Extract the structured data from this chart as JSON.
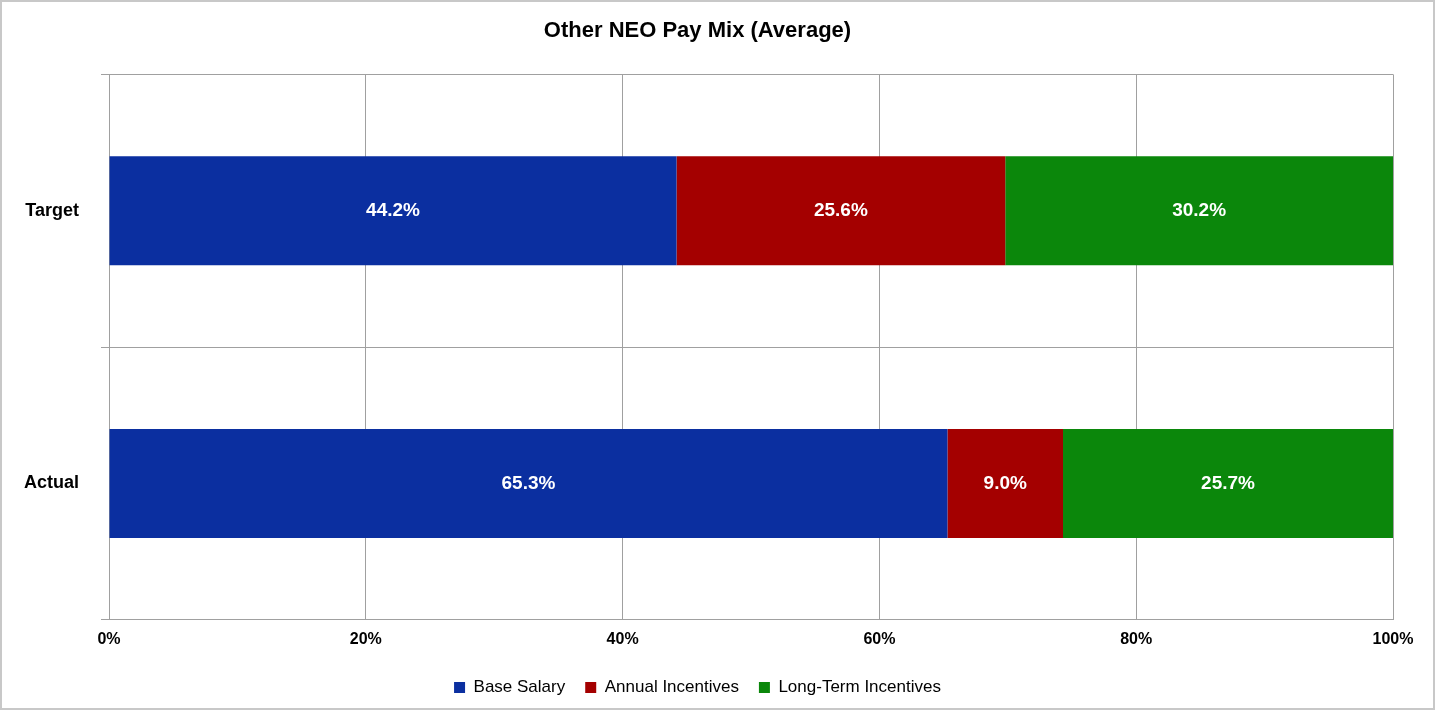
{
  "chart_data": {
    "type": "bar",
    "title": "Other NEO Pay Mix (Average)",
    "orientation": "horizontal",
    "stacked": true,
    "categories": [
      "Target",
      "Actual"
    ],
    "series": [
      {
        "name": "Base Salary",
        "color": "#0b2fa0",
        "values": [
          44.2,
          65.3
        ],
        "value_labels": [
          "44.2%",
          "65.3%"
        ]
      },
      {
        "name": "Annual Incentives",
        "color": "#a40000",
        "values": [
          25.6,
          9.0
        ],
        "value_labels": [
          "25.6%",
          "9.0%"
        ]
      },
      {
        "name": "Long-Term Incentives",
        "color": "#0b870b",
        "values": [
          30.2,
          25.7
        ],
        "value_labels": [
          "30.2%",
          "25.7%"
        ]
      }
    ],
    "xlim": [
      0,
      100
    ],
    "xticks": [
      {
        "value": 0,
        "label": "0%"
      },
      {
        "value": 20,
        "label": "20%"
      },
      {
        "value": 40,
        "label": "40%"
      },
      {
        "value": 60,
        "label": "60%"
      },
      {
        "value": 80,
        "label": "80%"
      },
      {
        "value": 100,
        "label": "100%"
      }
    ],
    "grid": true,
    "legend": "bottom"
  }
}
